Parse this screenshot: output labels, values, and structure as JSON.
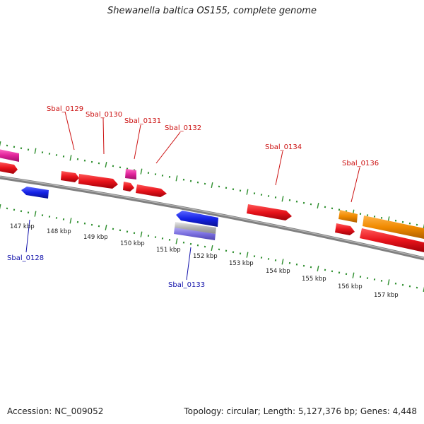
{
  "title": "Shewanella baltica OS155, complete genome",
  "footer": {
    "accession": "Accession: NC_009052",
    "summary": "Topology: circular; Length: 5,127,376 bp; Genes: 4,448"
  },
  "colors": {
    "backbone": "#808080",
    "tick": "#2f8f2f",
    "red": "#e8131b",
    "magenta": "#e0239a",
    "blue": "#1421e6",
    "orange": "#f08a00",
    "label_red": "#cc1111",
    "label_blue": "#1111aa"
  },
  "scale_ticks": [
    "147 kbp",
    "148 kbp",
    "149 kbp",
    "150 kbp",
    "151 kbp",
    "152 kbp",
    "153 kbp",
    "154 kbp",
    "155 kbp",
    "156 kbp",
    "157 kbp"
  ],
  "gene_labels_top": [
    "Sbal_0129",
    "Sbal_0130",
    "Sbal_0131",
    "Sbal_0132",
    "Sbal_0134",
    "Sbal_0136"
  ],
  "gene_labels_bottom": [
    "Sbal_0128",
    "Sbal_0133"
  ]
}
